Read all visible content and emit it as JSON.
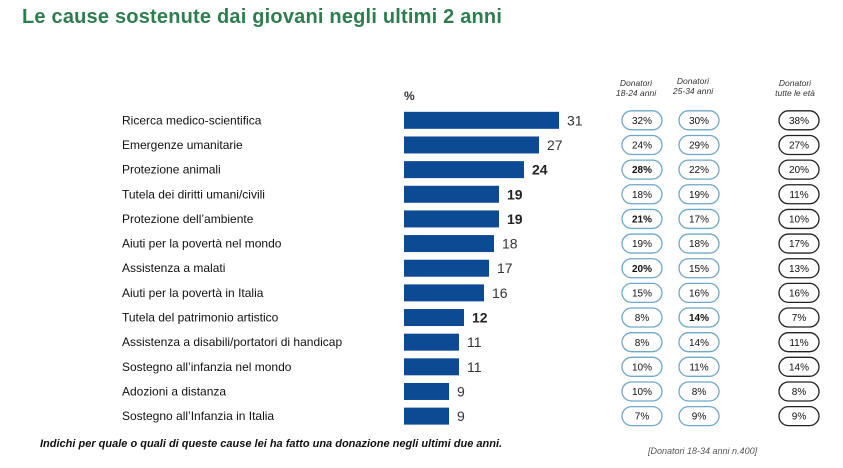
{
  "title": "Le cause sostenute dai giovani negli ultimi 2 anni",
  "percent_label": "%",
  "column_headers": {
    "col1": [
      "Donatori",
      "18-24 anni"
    ],
    "col2": [
      "Donatori",
      "25-34 anni"
    ],
    "col3": [
      "Donatori",
      "tutte le età"
    ]
  },
  "footer": {
    "question": "Indichi per quale o quali di queste cause lei ha fatto una donazione negli ultimi due anni.",
    "note": "[Donatori 18-34 anni  n.400]"
  },
  "colors": {
    "bar": "#0d4a94",
    "title": "#2e7d4f",
    "pill_blue": "#6fa8c8",
    "pill_black": "#222222"
  },
  "chart_data": {
    "type": "bar",
    "orientation": "horizontal",
    "categories": [
      "Ricerca medico-scientifica",
      "Emergenze umanitarie",
      "Protezione animali",
      "Tutela dei diritti umani/civili",
      "Protezione dell’ambiente",
      "Aiuti per la povertà nel mondo",
      "Assistenza a malati",
      "Aiuti per la povertà in Italia",
      "Tutela del patrimonio artistico",
      "Assistenza a disabili/portatori di handicap",
      "Sostegno all’infanzia nel mondo",
      "Adozioni a distanza",
      "Sostegno all’Infanzia in Italia"
    ],
    "values": [
      31,
      27,
      24,
      19,
      19,
      18,
      17,
      16,
      12,
      11,
      11,
      9,
      9
    ],
    "bold_values": [
      false,
      false,
      true,
      true,
      true,
      false,
      false,
      false,
      true,
      false,
      false,
      false,
      false
    ],
    "col_18_24": [
      "32%",
      "24%",
      "28%",
      "18%",
      "21%",
      "19%",
      "20%",
      "15%",
      "8%",
      "8%",
      "10%",
      "10%",
      "7%"
    ],
    "col_18_24_bold": [
      false,
      false,
      true,
      false,
      true,
      false,
      true,
      false,
      false,
      false,
      false,
      false,
      false
    ],
    "col_25_34": [
      "30%",
      "29%",
      "22%",
      "19%",
      "17%",
      "18%",
      "15%",
      "16%",
      "14%",
      "14%",
      "11%",
      "8%",
      "9%"
    ],
    "col_25_34_bold": [
      false,
      false,
      false,
      false,
      false,
      false,
      false,
      false,
      true,
      false,
      false,
      false,
      false
    ],
    "col_all": [
      "38%",
      "27%",
      "20%",
      "11%",
      "10%",
      "17%",
      "13%",
      "16%",
      "7%",
      "11%",
      "14%",
      "8%",
      "9%"
    ],
    "xlim": [
      0,
      31
    ]
  }
}
